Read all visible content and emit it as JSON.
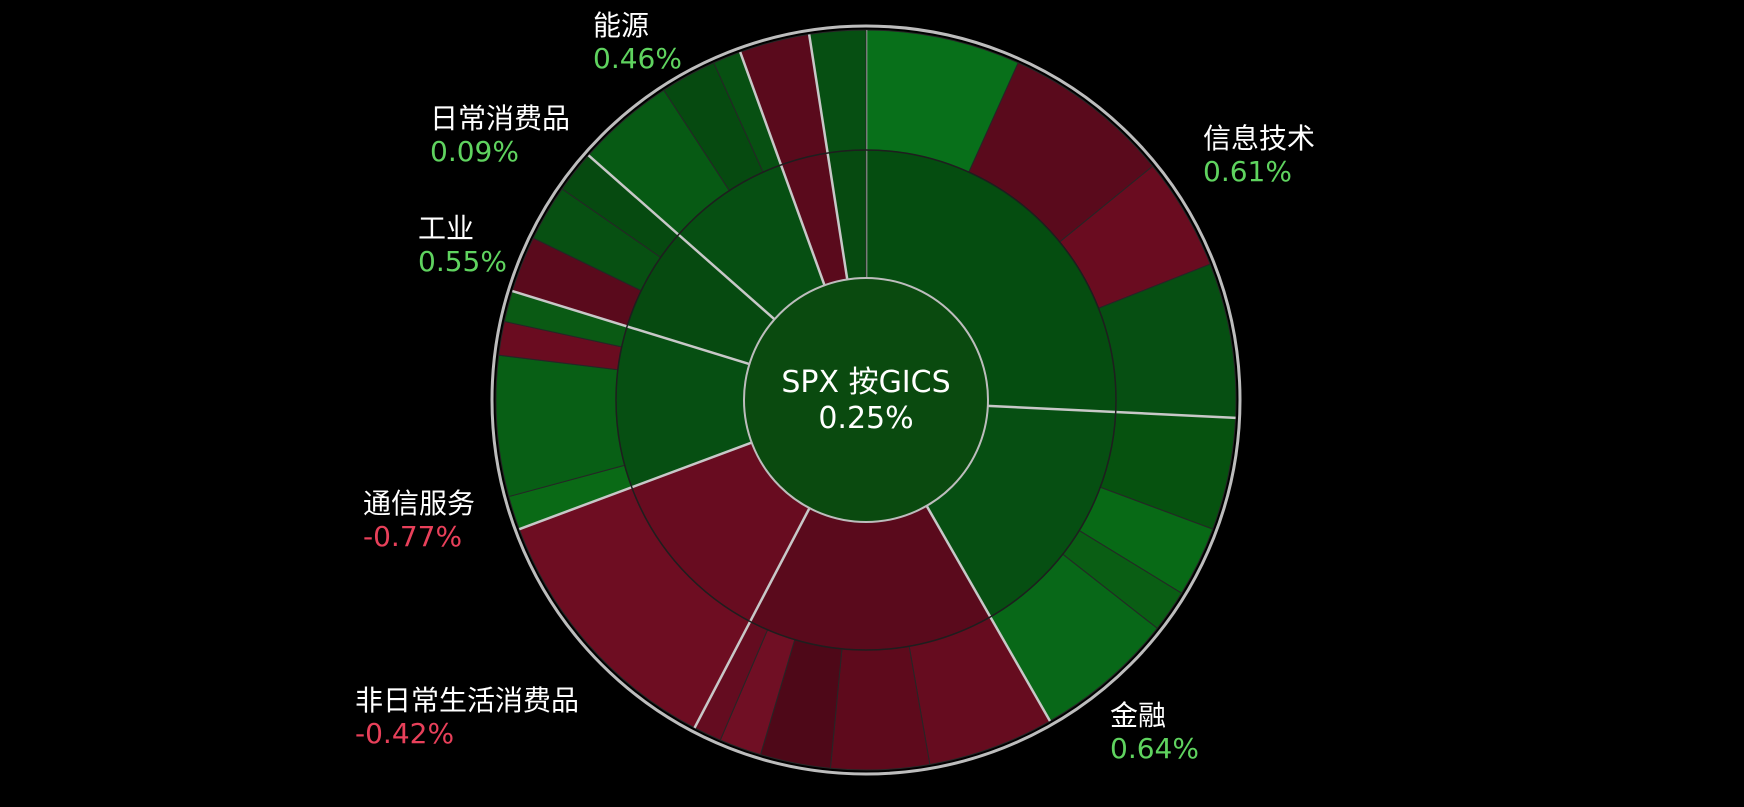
{
  "colors": {
    "background": "#000000",
    "positive_text": "#5fd35f",
    "negative_text": "#e8405a",
    "ring_border": "#bdbdbd"
  },
  "chart_data": {
    "type": "sunburst",
    "title": "",
    "center": {
      "label": "SPX 按GICS",
      "value": "0.25%",
      "color": "#0a4a0f"
    },
    "sectors": [
      {
        "name": "信息技术",
        "value": "0.61%",
        "weight": 21.0,
        "color": "#054d10",
        "children": [
          {
            "weight": 5.5,
            "color": "#08701a"
          },
          {
            "weight": 6.0,
            "color": "#5a0a1c"
          },
          {
            "weight": 4.0,
            "color": "#6a0c20"
          },
          {
            "weight": 5.5,
            "color": "#064f12"
          }
        ]
      },
      {
        "name": "金融",
        "value": "0.64%",
        "weight": 13.0,
        "color": "#064f12",
        "children": [
          {
            "weight": 4.0,
            "color": "#06520f"
          },
          {
            "weight": 2.5,
            "color": "#086a16"
          },
          {
            "weight": 1.5,
            "color": "#0a5e14"
          },
          {
            "weight": 5.0,
            "color": "#086818"
          }
        ]
      },
      {
        "name": "非日常生活消费品",
        "value": "-0.42%",
        "weight": 13.0,
        "color": "#5a0a1c",
        "children": [
          {
            "weight": 4.5,
            "color": "#660c1f"
          },
          {
            "weight": 3.5,
            "color": "#5e0a1c"
          },
          {
            "weight": 2.5,
            "color": "#4e0818"
          },
          {
            "weight": 1.5,
            "color": "#700f24"
          },
          {
            "weight": 1.0,
            "color": "#640c20"
          }
        ]
      },
      {
        "name": "通信服务",
        "value": "-0.77%",
        "weight": 9.5,
        "color": "#680c20",
        "children": [
          {
            "weight": 9.5,
            "color": "#6e0d22"
          }
        ]
      },
      {
        "name": "工业",
        "value": "0.55%",
        "weight": 8.5,
        "color": "#064f12",
        "children": [
          {
            "weight": 1.2,
            "color": "#0a6a16"
          },
          {
            "weight": 5.0,
            "color": "#085f15"
          },
          {
            "weight": 1.2,
            "color": "#6a0c20"
          },
          {
            "weight": 1.1,
            "color": "#0a5a14"
          }
        ]
      },
      {
        "name": "日常消费品",
        "value": "0.09%",
        "weight": 5.5,
        "color": "#064a10",
        "children": [
          {
            "weight": 2.0,
            "color": "#5a0a1c"
          },
          {
            "weight": 2.0,
            "color": "#075012"
          },
          {
            "weight": 1.5,
            "color": "#064a10"
          }
        ]
      },
      {
        "name": "能源",
        "value": "0.46%",
        "weight": 6.5,
        "color": "#064f12",
        "children": [
          {
            "weight": 3.5,
            "color": "#075a14"
          },
          {
            "weight": 2.0,
            "color": "#064a10"
          },
          {
            "weight": 1.0,
            "color": "#075012"
          }
        ]
      },
      {
        "name": "",
        "value": "",
        "weight": 2.5,
        "color": "#5a0a1c",
        "children": [
          {
            "weight": 2.5,
            "color": "#5a0a1c"
          }
        ]
      },
      {
        "name": "",
        "value": "",
        "weight": 2.0,
        "color": "#064a10",
        "children": [
          {
            "weight": 2.0,
            "color": "#064f12"
          }
        ]
      }
    ]
  }
}
